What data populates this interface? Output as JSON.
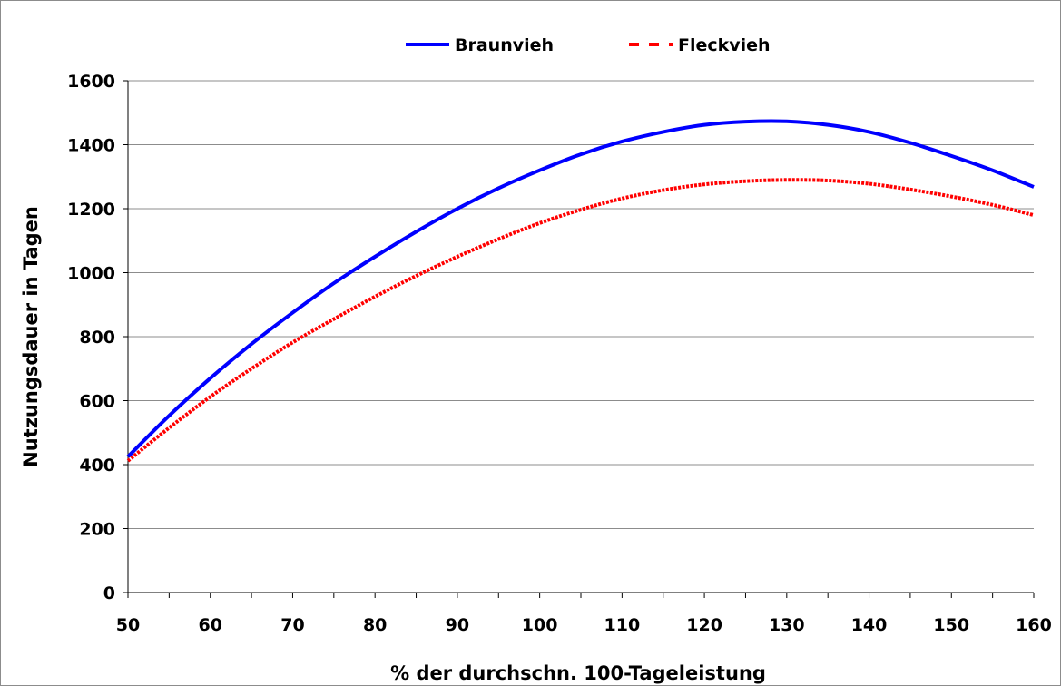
{
  "chart_data": {
    "type": "line",
    "xlabel": "% der durchschn. 100-Tageleistung",
    "ylabel": "Nutzungsdauer in Tagen",
    "xlim": [
      50,
      160
    ],
    "ylim": [
      0,
      1600
    ],
    "x_ticks": [
      "50",
      "60",
      "70",
      "80",
      "90",
      "100",
      "110",
      "120",
      "130",
      "140",
      "150",
      "160"
    ],
    "y_ticks": [
      "0",
      "200",
      "400",
      "600",
      "800",
      "1000",
      "1200",
      "1400",
      "1600"
    ],
    "grid": "horizontal",
    "legend_position": "top",
    "x": [
      50,
      55,
      60,
      65,
      70,
      75,
      80,
      85,
      90,
      95,
      100,
      105,
      110,
      115,
      120,
      125,
      130,
      135,
      140,
      145,
      150,
      155,
      160
    ],
    "series": [
      {
        "name": "Braunvieh",
        "color": "#0000ff",
        "style": "solid",
        "values": [
          425,
          553,
          670,
          777,
          875,
          967,
          1050,
          1128,
          1200,
          1264,
          1320,
          1370,
          1410,
          1440,
          1462,
          1472,
          1473,
          1462,
          1440,
          1406,
          1365,
          1320,
          1268
        ]
      },
      {
        "name": "Fleckvieh",
        "color": "#ff0000",
        "style": "dashed",
        "values": [
          412,
          515,
          612,
          700,
          782,
          855,
          925,
          990,
          1050,
          1105,
          1155,
          1197,
          1232,
          1258,
          1276,
          1286,
          1290,
          1288,
          1278,
          1260,
          1238,
          1212,
          1180
        ]
      }
    ]
  }
}
